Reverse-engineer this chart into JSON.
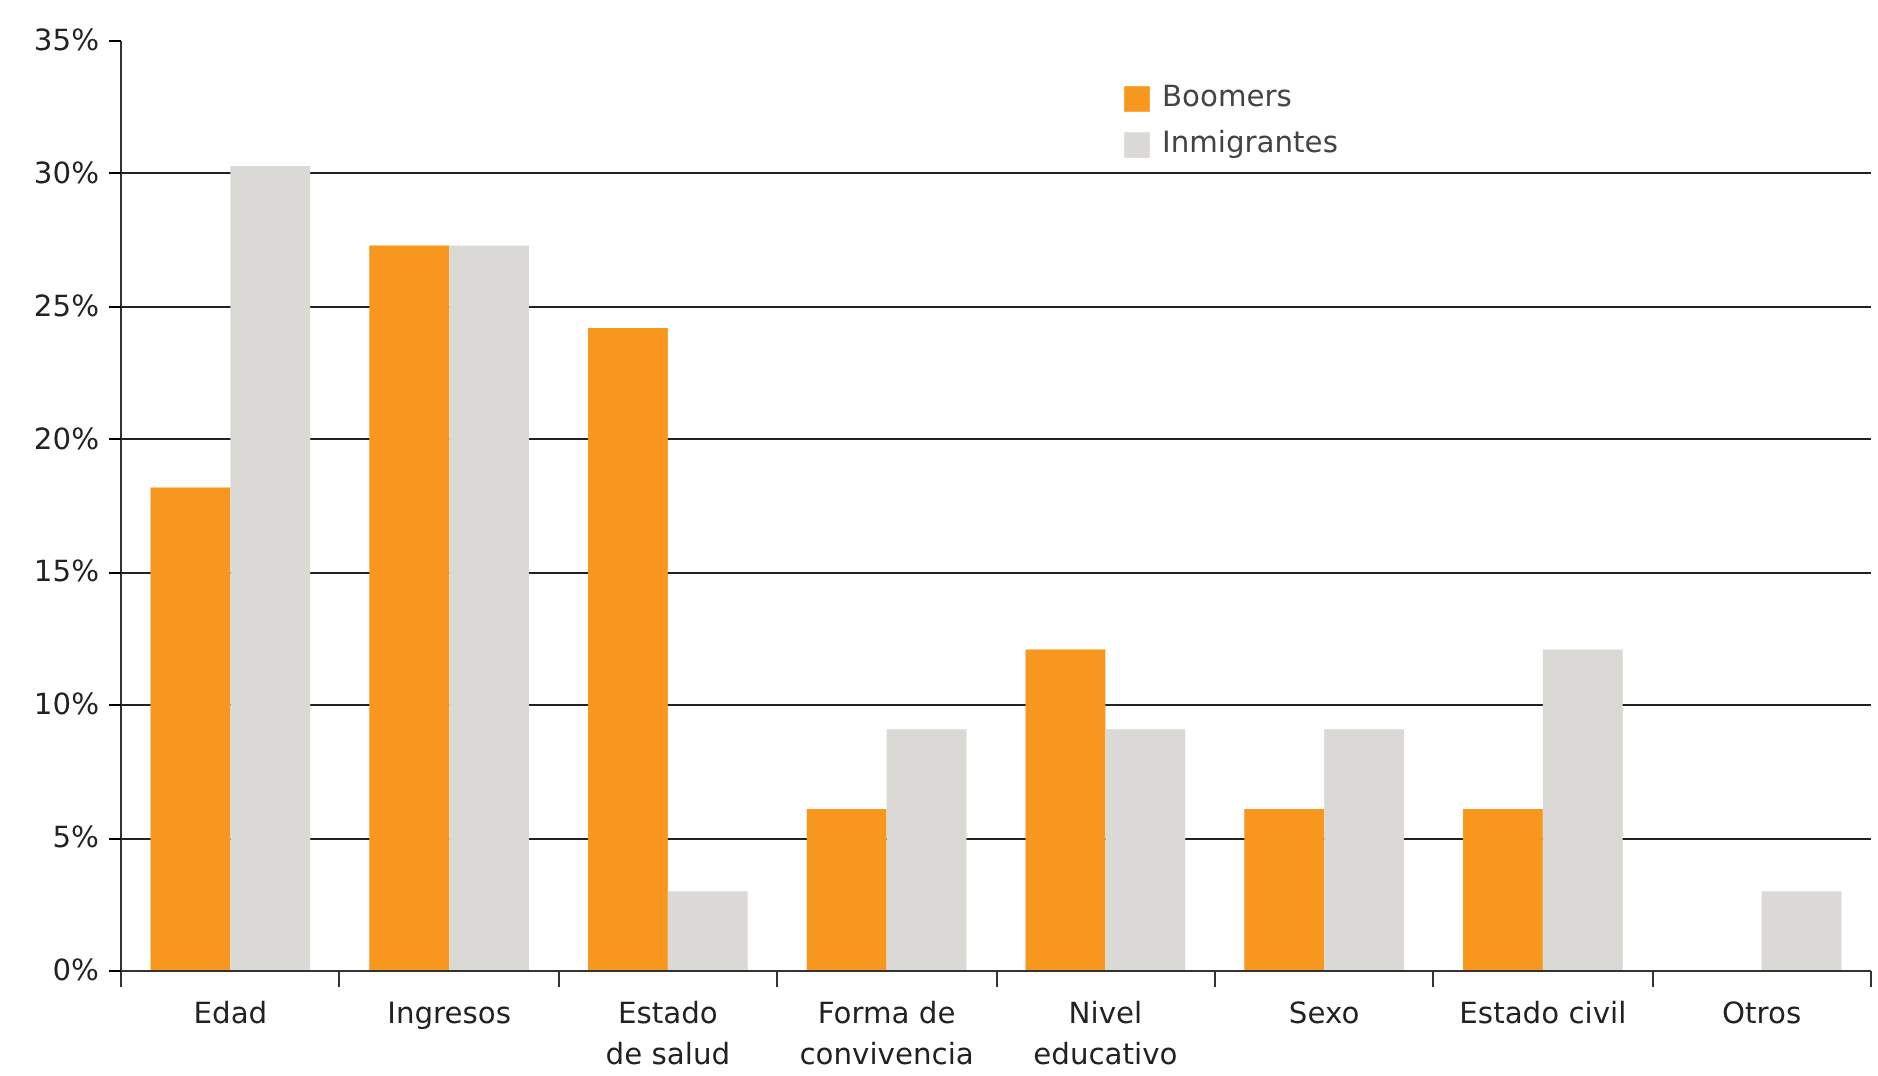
{
  "chart_data": {
    "type": "bar",
    "categories": [
      "Edad",
      "Ingresos",
      "Estado\nde salud",
      "Forma de\nconvivencia",
      "Nivel\neducativo",
      "Sexo",
      "Estado civil",
      "Otros"
    ],
    "series": [
      {
        "name": "Boomers",
        "color": "#f7971e",
        "values": [
          18.2,
          27.3,
          24.2,
          6.1,
          12.1,
          6.1,
          6.1,
          0
        ]
      },
      {
        "name": "Inmigrantes",
        "color": "#dbd9d6",
        "values": [
          30.3,
          27.3,
          3.0,
          9.1,
          9.1,
          9.1,
          12.1,
          3.0
        ]
      }
    ],
    "ylim": [
      0,
      35
    ],
    "yticks": [
      {
        "value": 0,
        "label": "0%"
      },
      {
        "value": 5,
        "label": "5%"
      },
      {
        "value": 10,
        "label": "10%"
      },
      {
        "value": 15,
        "label": "15%"
      },
      {
        "value": 20,
        "label": "20%"
      },
      {
        "value": 25,
        "label": "25%"
      },
      {
        "value": 30,
        "label": "30%"
      },
      {
        "value": 35,
        "label": "35%"
      }
    ],
    "grid": "y",
    "legend": "top right"
  }
}
